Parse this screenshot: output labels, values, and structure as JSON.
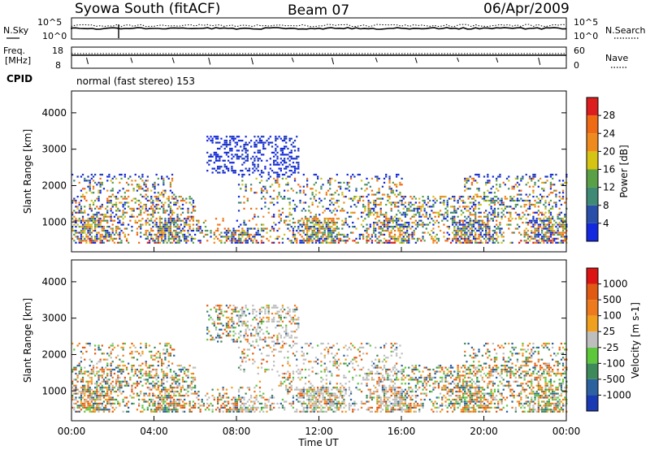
{
  "header": {
    "station": "Syowa South (fitACF)",
    "beam": "Beam 07",
    "date": "06/Apr/2009"
  },
  "nsky_panel": {
    "left_label": "N.Sky",
    "right_label": "N.Search",
    "left_ticks": [
      "10^5",
      "10^0"
    ],
    "right_ticks": [
      "10^5",
      "10^0"
    ]
  },
  "freq_panel": {
    "left_label_1": "Freq.",
    "left_label_2": "[MHz]",
    "right_label": "Nave",
    "left_ticks": [
      "18",
      "8"
    ],
    "right_ticks": [
      "60",
      "0"
    ]
  },
  "cpid": {
    "label": "CPID",
    "text": "normal (fast stereo) 153"
  },
  "chart_data": [
    {
      "type": "heatmap",
      "name": "Power",
      "ylabel": "Slant Range [km]",
      "ylim": [
        180,
        4600
      ],
      "yticks": [
        "1000",
        "2000",
        "3000",
        "4000"
      ],
      "xlim": [
        0,
        24
      ],
      "colorbar": {
        "label": "Power [dB]",
        "ticks": [
          "4",
          "8",
          "12",
          "16",
          "20",
          "24",
          "28"
        ],
        "colors": [
          "#1428e0",
          "#2a4fa8",
          "#3f8a74",
          "#5aa046",
          "#d6c414",
          "#ee8a1e",
          "#ee6a14",
          "#dc1e1e"
        ]
      },
      "scale": [
        "#1428e0",
        "#1e3ab8",
        "#3f8a74",
        "#5aa046",
        "#cfc21a",
        "#ee8a1e",
        "#ee6a14",
        "#dc1e1e"
      ]
    },
    {
      "type": "heatmap",
      "name": "Velocity",
      "ylabel": "Slant Range [km]",
      "ylim": [
        180,
        4600
      ],
      "yticks": [
        "1000",
        "2000",
        "3000",
        "4000"
      ],
      "xlim": [
        0,
        24
      ],
      "xlabel": "Time UT",
      "xticks": [
        "00:00",
        "04:00",
        "08:00",
        "12:00",
        "16:00",
        "20:00",
        "00:00"
      ],
      "colorbar": {
        "label": "Velocity [m s-1]",
        "ticks": [
          "1000",
          "500",
          "100",
          "25",
          "-25",
          "-100",
          "-500",
          "-1000"
        ],
        "colors": [
          "#1a3ab4",
          "#2c62a0",
          "#3f8a5a",
          "#5ec83c",
          "#bebebe",
          "#eea01e",
          "#ee7a1e",
          "#e05a14",
          "#dc1414"
        ]
      },
      "scale": [
        "#2c62a0",
        "#3f8a5a",
        "#5ec83c",
        "#bebebe",
        "#eea01e",
        "#ee7a1e",
        "#e05a14"
      ]
    }
  ]
}
